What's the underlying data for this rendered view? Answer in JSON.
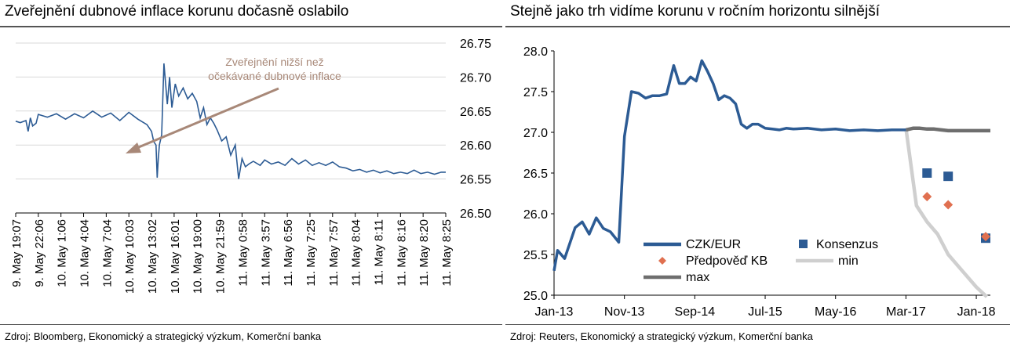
{
  "left": {
    "title": "Zveřejnění dubnové inflace korunu dočasně oslabilo",
    "source": "Zdroj: Bloomberg, Ekonomický a strategický výzkum, Komerční banka",
    "annotation": [
      "Zveřejnění nižší než",
      "očekávané dubnové inflace"
    ],
    "chart_data": {
      "type": "line",
      "title": "Zveřejnění dubnové inflace korunu dočasně oslabilo",
      "xlabel": "",
      "ylabel": "",
      "ylim": [
        26.5,
        26.75
      ],
      "yticks": [
        "26.75",
        "26.70",
        "26.65",
        "26.60",
        "26.55",
        "26.50"
      ],
      "xticks": [
        "9. May 19:07",
        "9. May 22:06",
        "10. May 1:06",
        "10. May 4:04",
        "10. May 7:04",
        "10. May 10:03",
        "10. May 13:02",
        "10. May 16:01",
        "10. May 19:00",
        "10. May 21:59",
        "11. May 0:58",
        "11. May 3:57",
        "11. May 6:56",
        "11. May 7:25",
        "11. May 7:57",
        "11. May 8:04",
        "11. May 8:11",
        "11. May 8:16",
        "11. May 8:20",
        "11. May 8:25"
      ],
      "series": [
        {
          "color": "#2c5b94",
          "x": [
            0,
            0.2,
            0.45,
            0.55,
            0.65,
            0.75,
            0.9,
            1.0,
            1.4,
            1.8,
            2.2,
            2.6,
            3.0,
            3.4,
            3.8,
            4.2,
            4.6,
            5.0,
            5.4,
            5.8,
            6.0,
            6.1,
            6.2,
            6.25,
            6.3,
            6.35,
            6.45,
            6.55,
            6.7,
            6.8,
            6.9,
            7.05,
            7.2,
            7.4,
            7.6,
            7.8,
            8.0,
            8.15,
            8.3,
            8.45,
            8.6,
            8.75,
            8.9,
            9.1,
            9.3,
            9.5,
            9.7,
            9.85,
            10.0,
            10.15,
            10.3,
            10.5,
            10.8,
            11.0,
            11.3,
            11.6,
            11.9,
            12.2,
            12.5,
            12.8,
            13.1,
            13.4,
            13.7,
            14.0,
            14.3,
            14.6,
            14.9,
            15.2,
            15.5,
            15.8,
            16.1,
            16.4,
            16.7,
            17.0,
            17.3,
            17.6,
            17.9,
            18.2,
            18.5,
            18.8,
            19.0
          ],
          "y": [
            26.635,
            26.633,
            26.636,
            26.62,
            26.64,
            26.628,
            26.632,
            26.645,
            26.641,
            26.646,
            26.638,
            26.646,
            26.64,
            26.65,
            26.641,
            26.647,
            26.636,
            26.648,
            26.638,
            26.63,
            26.62,
            26.605,
            26.6,
            26.552,
            26.58,
            26.6,
            26.615,
            26.72,
            26.66,
            26.7,
            26.655,
            26.69,
            26.672,
            26.684,
            26.668,
            26.676,
            26.664,
            26.64,
            26.655,
            26.63,
            26.64,
            26.632,
            26.622,
            26.606,
            26.612,
            26.585,
            26.6,
            26.55,
            26.58,
            26.568,
            26.572,
            26.576,
            26.57,
            26.578,
            26.572,
            26.575,
            26.57,
            26.58,
            26.572,
            26.578,
            26.57,
            26.574,
            26.57,
            26.575,
            26.568,
            26.566,
            26.562,
            26.564,
            26.56,
            26.563,
            26.559,
            26.562,
            26.558,
            26.56,
            26.558,
            26.563,
            26.558,
            26.56,
            26.557,
            26.56,
            26.56
          ]
        }
      ]
    }
  },
  "right": {
    "title": "Stejně jako trh vidíme korunu v ročním horizontu silnější",
    "source": "Zdroj: Reuters, Ekonomický a strategický výzkum, Komerční banka",
    "legend": [
      {
        "label": "CZK/EUR",
        "kind": "line",
        "color": "#2c5b94"
      },
      {
        "label": "Konsenzus",
        "kind": "square",
        "color": "#2c5b94"
      },
      {
        "label": "Předpověď KB",
        "kind": "diamond",
        "color": "#e07050"
      },
      {
        "label": "min",
        "kind": "line",
        "color": "#cfcfcf"
      },
      {
        "label": "max",
        "kind": "line",
        "color": "#6e6e6e"
      }
    ],
    "chart_data": {
      "type": "line",
      "title": "Stejně jako trh vidíme korunu v ročním horizontu silnější",
      "xlabel": "",
      "ylabel": "",
      "ylim": [
        25.0,
        28.0
      ],
      "xlim": [
        0,
        62
      ],
      "xticks": [
        {
          "label": "Jan-13",
          "x": 0
        },
        {
          "label": "Nov-13",
          "x": 10
        },
        {
          "label": "Sep-14",
          "x": 20
        },
        {
          "label": "Jul-15",
          "x": 30
        },
        {
          "label": "May-16",
          "x": 40
        },
        {
          "label": "Mar-17",
          "x": 50
        },
        {
          "label": "Jan-18",
          "x": 60
        }
      ],
      "yticks": [
        "28.0",
        "27.5",
        "27.0",
        "26.5",
        "26.0",
        "25.5",
        "25.0"
      ],
      "series": [
        {
          "name": "CZK/EUR",
          "color": "#2c5b94",
          "x": [
            0,
            0.5,
            1.5,
            3,
            4,
            5,
            6,
            7,
            8,
            9.2,
            10,
            11,
            12,
            13,
            14,
            15,
            16,
            17,
            17.8,
            18.6,
            19.4,
            20.2,
            21,
            21.8,
            22.6,
            23.4,
            24.2,
            25,
            25.8,
            26.6,
            27.4,
            28.2,
            29,
            30,
            31,
            32,
            33,
            34,
            36,
            38,
            40,
            42,
            44,
            46,
            48,
            50
          ],
          "y": [
            25.3,
            25.55,
            25.45,
            25.83,
            25.9,
            25.75,
            25.95,
            25.82,
            25.78,
            25.65,
            26.95,
            27.5,
            27.48,
            27.42,
            27.45,
            27.45,
            27.47,
            27.82,
            27.6,
            27.6,
            27.68,
            27.63,
            27.88,
            27.75,
            27.6,
            27.4,
            27.45,
            27.42,
            27.35,
            27.1,
            27.05,
            27.1,
            27.1,
            27.05,
            27.04,
            27.03,
            27.05,
            27.04,
            27.05,
            27.03,
            27.04,
            27.02,
            27.03,
            27.02,
            27.03,
            27.03
          ]
        },
        {
          "name": "min",
          "color": "#cfcfcf",
          "x": [
            50,
            51.5,
            53,
            54.5,
            56,
            58,
            60,
            61.5
          ],
          "y": [
            27.05,
            26.1,
            25.9,
            25.75,
            25.5,
            25.3,
            25.1,
            24.98
          ]
        },
        {
          "name": "max",
          "color": "#6e6e6e",
          "x": [
            50,
            51,
            52,
            53,
            54,
            55,
            56,
            58,
            60,
            62
          ],
          "y": [
            27.03,
            27.05,
            27.05,
            27.04,
            27.04,
            27.03,
            27.02,
            27.02,
            27.02,
            27.02
          ]
        },
        {
          "name": "Konsenzus",
          "color": "#2c5b94",
          "marker": "square",
          "x": [
            53,
            56,
            62
          ],
          "y": [
            26.5,
            26.46,
            25.7
          ]
        },
        {
          "name": "Předpověď KB",
          "color": "#e07050",
          "marker": "diamond",
          "x": [
            53,
            56,
            62
          ],
          "y": [
            26.21,
            26.11,
            25.72
          ]
        }
      ]
    }
  }
}
